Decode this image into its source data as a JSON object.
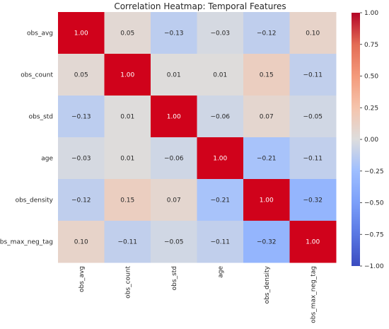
{
  "chart_data": {
    "type": "heatmap",
    "title": "Correlation Heatmap: Temporal Features",
    "rows": [
      "obs_avg",
      "obs_count",
      "obs_std",
      "age",
      "obs_density",
      "obs_max_neg_tag"
    ],
    "cols": [
      "obs_avg",
      "obs_count",
      "obs_std",
      "age",
      "obs_density",
      "obs_max_neg_tag"
    ],
    "values": [
      [
        1.0,
        0.05,
        -0.13,
        -0.03,
        -0.12,
        0.1
      ],
      [
        0.05,
        1.0,
        0.01,
        0.01,
        0.15,
        -0.11
      ],
      [
        -0.13,
        0.01,
        1.0,
        -0.06,
        0.07,
        -0.05
      ],
      [
        -0.03,
        0.01,
        -0.06,
        1.0,
        -0.21,
        -0.11
      ],
      [
        -0.12,
        0.15,
        0.07,
        -0.21,
        1.0,
        -0.32
      ],
      [
        0.1,
        -0.11,
        -0.05,
        -0.11,
        -0.32,
        1.0
      ]
    ],
    "value_labels": [
      [
        "1.00",
        "0.05",
        "−0.13",
        "−0.03",
        "−0.12",
        "0.10"
      ],
      [
        "0.05",
        "1.00",
        "0.01",
        "0.01",
        "0.15",
        "−0.11"
      ],
      [
        "−0.13",
        "0.01",
        "1.00",
        "−0.06",
        "0.07",
        "−0.05"
      ],
      [
        "−0.03",
        "0.01",
        "−0.06",
        "1.00",
        "−0.21",
        "−0.11"
      ],
      [
        "−0.12",
        "0.15",
        "0.07",
        "−0.21",
        "1.00",
        "−0.32"
      ],
      [
        "0.10",
        "−0.11",
        "−0.05",
        "−0.11",
        "−0.32",
        "1.00"
      ]
    ],
    "colormap": "coolwarm",
    "vmin": -1.0,
    "vmax": 1.0,
    "colorbar_ticks": [
      {
        "value": 1.0,
        "label": "1.00"
      },
      {
        "value": 0.75,
        "label": "0.75"
      },
      {
        "value": 0.5,
        "label": "0.50"
      },
      {
        "value": 0.25,
        "label": "0.25"
      },
      {
        "value": 0.0,
        "label": "0.00"
      },
      {
        "value": -0.25,
        "label": "−0.25"
      },
      {
        "value": -0.5,
        "label": "−0.50"
      },
      {
        "value": -0.75,
        "label": "−0.75"
      },
      {
        "value": -1.0,
        "label": "−1.00"
      }
    ],
    "colors": {
      "negative_end": "#3b4cc0",
      "neutral": "#dddddd",
      "positive_end": "#b40426",
      "diagonal": "#d0021b"
    }
  }
}
